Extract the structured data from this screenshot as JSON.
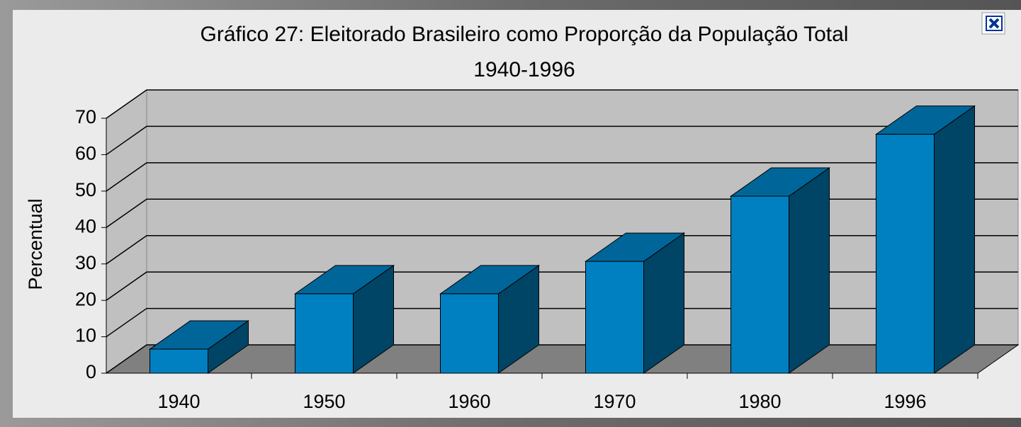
{
  "chart_data": {
    "type": "bar3d",
    "title": "Gráfico 27: Eleitorado Brasileiro como Proporção da População Total",
    "subtitle": "1940-1996",
    "ylabel": "Percentual",
    "categories": [
      "1940",
      "1950",
      "1960",
      "1970",
      "1980",
      "1996"
    ],
    "values": [
      6.6,
      21.8,
      21.8,
      30.7,
      48.6,
      65.6
    ],
    "color": "#0080c0",
    "ylim": [
      0,
      70
    ],
    "yticks": [
      0,
      10,
      20,
      30,
      40,
      50,
      60,
      70
    ],
    "grid": true
  }
}
